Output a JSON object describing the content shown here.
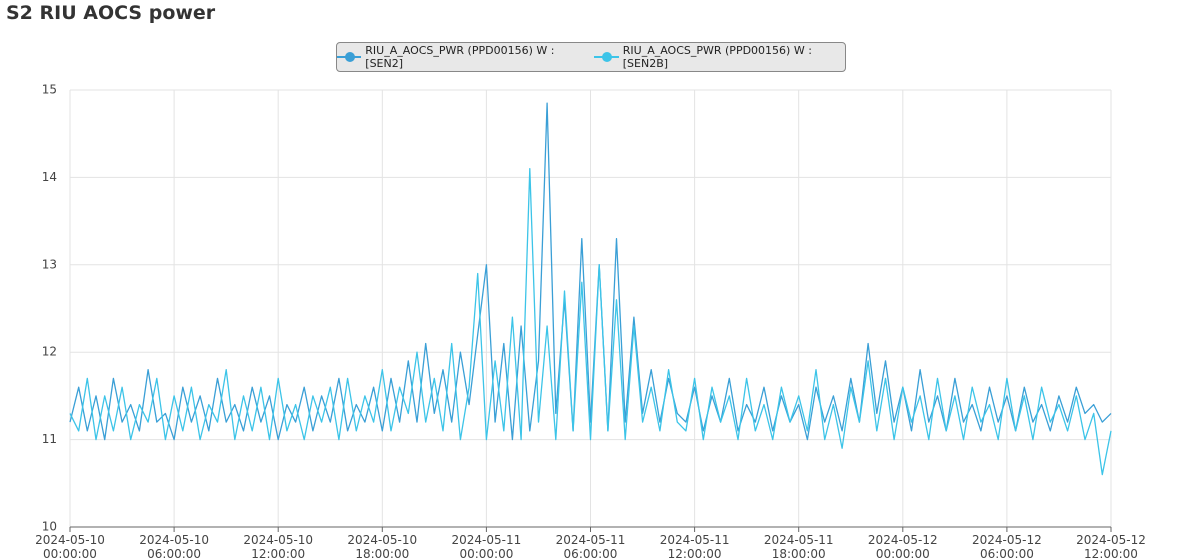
{
  "chart_data": {
    "type": "line",
    "title": "S2 RIU AOCS power",
    "x": [
      "2024-05-10 00:00:00",
      "2024-05-10 00:30:00",
      "2024-05-10 01:00:00",
      "2024-05-10 01:30:00",
      "2024-05-10 02:00:00",
      "2024-05-10 02:30:00",
      "2024-05-10 03:00:00",
      "2024-05-10 03:30:00",
      "2024-05-10 04:00:00",
      "2024-05-10 04:30:00",
      "2024-05-10 05:00:00",
      "2024-05-10 05:30:00",
      "2024-05-10 06:00:00",
      "2024-05-10 06:30:00",
      "2024-05-10 07:00:00",
      "2024-05-10 07:30:00",
      "2024-05-10 08:00:00",
      "2024-05-10 08:30:00",
      "2024-05-10 09:00:00",
      "2024-05-10 09:30:00",
      "2024-05-10 10:00:00",
      "2024-05-10 10:30:00",
      "2024-05-10 11:00:00",
      "2024-05-10 11:30:00",
      "2024-05-10 12:00:00",
      "2024-05-10 12:30:00",
      "2024-05-10 13:00:00",
      "2024-05-10 13:30:00",
      "2024-05-10 14:00:00",
      "2024-05-10 14:30:00",
      "2024-05-10 15:00:00",
      "2024-05-10 15:30:00",
      "2024-05-10 16:00:00",
      "2024-05-10 16:30:00",
      "2024-05-10 17:00:00",
      "2024-05-10 17:30:00",
      "2024-05-10 18:00:00",
      "2024-05-10 18:30:00",
      "2024-05-10 19:00:00",
      "2024-05-10 19:30:00",
      "2024-05-10 20:00:00",
      "2024-05-10 20:30:00",
      "2024-05-10 21:00:00",
      "2024-05-10 21:30:00",
      "2024-05-10 22:00:00",
      "2024-05-10 22:30:00",
      "2024-05-10 23:00:00",
      "2024-05-10 23:30:00",
      "2024-05-11 00:00:00",
      "2024-05-11 00:30:00",
      "2024-05-11 01:00:00",
      "2024-05-11 01:30:00",
      "2024-05-11 02:00:00",
      "2024-05-11 02:30:00",
      "2024-05-11 03:00:00",
      "2024-05-11 03:30:00",
      "2024-05-11 04:00:00",
      "2024-05-11 04:30:00",
      "2024-05-11 05:00:00",
      "2024-05-11 05:30:00",
      "2024-05-11 06:00:00",
      "2024-05-11 06:30:00",
      "2024-05-11 07:00:00",
      "2024-05-11 07:30:00",
      "2024-05-11 08:00:00",
      "2024-05-11 08:30:00",
      "2024-05-11 09:00:00",
      "2024-05-11 09:30:00",
      "2024-05-11 10:00:00",
      "2024-05-11 10:30:00",
      "2024-05-11 11:00:00",
      "2024-05-11 11:30:00",
      "2024-05-11 12:00:00",
      "2024-05-11 12:30:00",
      "2024-05-11 13:00:00",
      "2024-05-11 13:30:00",
      "2024-05-11 14:00:00",
      "2024-05-11 14:30:00",
      "2024-05-11 15:00:00",
      "2024-05-11 15:30:00",
      "2024-05-11 16:00:00",
      "2024-05-11 16:30:00",
      "2024-05-11 17:00:00",
      "2024-05-11 17:30:00",
      "2024-05-11 18:00:00",
      "2024-05-11 18:30:00",
      "2024-05-11 19:00:00",
      "2024-05-11 19:30:00",
      "2024-05-11 20:00:00",
      "2024-05-11 20:30:00",
      "2024-05-11 21:00:00",
      "2024-05-11 21:30:00",
      "2024-05-11 22:00:00",
      "2024-05-11 22:30:00",
      "2024-05-11 23:00:00",
      "2024-05-11 23:30:00",
      "2024-05-12 00:00:00",
      "2024-05-12 00:30:00",
      "2024-05-12 01:00:00",
      "2024-05-12 01:30:00",
      "2024-05-12 02:00:00",
      "2024-05-12 02:30:00",
      "2024-05-12 03:00:00",
      "2024-05-12 03:30:00",
      "2024-05-12 04:00:00",
      "2024-05-12 04:30:00",
      "2024-05-12 05:00:00",
      "2024-05-12 05:30:00",
      "2024-05-12 06:00:00",
      "2024-05-12 06:30:00",
      "2024-05-12 07:00:00",
      "2024-05-12 07:30:00",
      "2024-05-12 08:00:00",
      "2024-05-12 08:30:00",
      "2024-05-12 09:00:00",
      "2024-05-12 09:30:00",
      "2024-05-12 10:00:00",
      "2024-05-12 10:30:00",
      "2024-05-12 11:00:00",
      "2024-05-12 11:30:00",
      "2024-05-12 12:00:00"
    ],
    "series": [
      {
        "name": "RIU_A_AOCS_PWR (PPD00156) W : [SEN2]",
        "color": "#3a9fd6",
        "values": [
          11.2,
          11.6,
          11.1,
          11.5,
          11.0,
          11.7,
          11.2,
          11.4,
          11.1,
          11.8,
          11.2,
          11.3,
          11.0,
          11.6,
          11.2,
          11.5,
          11.1,
          11.7,
          11.2,
          11.4,
          11.1,
          11.6,
          11.2,
          11.5,
          11.0,
          11.4,
          11.2,
          11.6,
          11.1,
          11.5,
          11.2,
          11.7,
          11.1,
          11.4,
          11.2,
          11.6,
          11.1,
          11.7,
          11.2,
          11.9,
          11.2,
          12.1,
          11.3,
          11.8,
          11.2,
          12.0,
          11.4,
          12.2,
          13.0,
          11.2,
          12.1,
          11.0,
          12.3,
          11.1,
          11.9,
          14.85,
          11.3,
          12.6,
          11.1,
          13.3,
          11.2,
          13.0,
          11.1,
          13.3,
          11.2,
          12.4,
          11.3,
          11.8,
          11.2,
          11.7,
          11.3,
          11.2,
          11.6,
          11.1,
          11.5,
          11.2,
          11.7,
          11.1,
          11.4,
          11.2,
          11.6,
          11.1,
          11.5,
          11.2,
          11.4,
          11.0,
          11.6,
          11.2,
          11.5,
          11.1,
          11.7,
          11.2,
          12.1,
          11.3,
          11.9,
          11.2,
          11.6,
          11.1,
          11.8,
          11.2,
          11.5,
          11.1,
          11.7,
          11.2,
          11.4,
          11.1,
          11.6,
          11.2,
          11.5,
          11.1,
          11.6,
          11.2,
          11.4,
          11.1,
          11.5,
          11.2,
          11.6,
          11.3,
          11.4,
          11.2,
          11.3
        ]
      },
      {
        "name": "RIU_A_AOCS_PWR (PPD00156) W : [SEN2B]",
        "color": "#3cc4e8",
        "values": [
          11.3,
          11.1,
          11.7,
          11.0,
          11.5,
          11.1,
          11.6,
          11.0,
          11.4,
          11.2,
          11.7,
          11.0,
          11.5,
          11.1,
          11.6,
          11.0,
          11.4,
          11.2,
          11.8,
          11.0,
          11.5,
          11.1,
          11.6,
          11.0,
          11.7,
          11.1,
          11.4,
          11.0,
          11.5,
          11.2,
          11.6,
          11.0,
          11.7,
          11.1,
          11.5,
          11.2,
          11.8,
          11.1,
          11.6,
          11.3,
          12.0,
          11.2,
          11.7,
          11.1,
          12.1,
          11.0,
          11.6,
          12.9,
          11.0,
          11.9,
          11.1,
          12.4,
          11.0,
          14.1,
          11.2,
          12.3,
          11.0,
          12.7,
          11.1,
          12.8,
          11.0,
          13.0,
          11.1,
          12.6,
          11.0,
          12.3,
          11.2,
          11.6,
          11.1,
          11.8,
          11.2,
          11.1,
          11.7,
          11.0,
          11.6,
          11.2,
          11.5,
          11.0,
          11.7,
          11.1,
          11.4,
          11.0,
          11.6,
          11.2,
          11.5,
          11.1,
          11.8,
          11.0,
          11.4,
          10.9,
          11.6,
          11.2,
          11.9,
          11.1,
          11.7,
          11.0,
          11.6,
          11.2,
          11.5,
          11.0,
          11.7,
          11.1,
          11.5,
          11.0,
          11.6,
          11.2,
          11.4,
          11.0,
          11.7,
          11.1,
          11.5,
          11.0,
          11.6,
          11.2,
          11.4,
          11.1,
          11.5,
          11.0,
          11.3,
          10.6,
          11.1
        ]
      }
    ],
    "xlim": [
      "2024-05-10 00:00:00",
      "2024-05-12 12:00:00"
    ],
    "xticks": [
      "2024-05-10 00:00:00",
      "2024-05-10 06:00:00",
      "2024-05-10 12:00:00",
      "2024-05-10 18:00:00",
      "2024-05-11 00:00:00",
      "2024-05-11 06:00:00",
      "2024-05-11 12:00:00",
      "2024-05-11 18:00:00",
      "2024-05-12 00:00:00",
      "2024-05-12 06:00:00",
      "2024-05-12 12:00:00"
    ],
    "ylim": [
      10,
      15
    ],
    "yticks": [
      10,
      11,
      12,
      13,
      14,
      15
    ],
    "grid": true,
    "legend": "top"
  }
}
